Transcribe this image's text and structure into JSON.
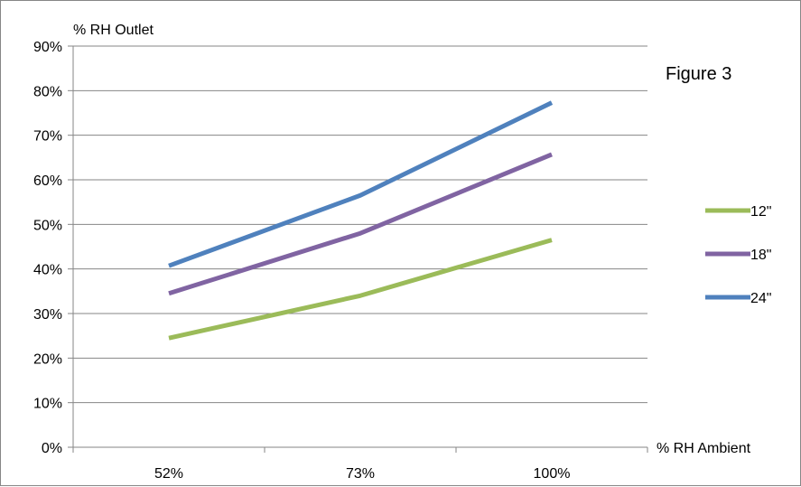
{
  "chart_data": {
    "type": "line",
    "title": "Figure 3",
    "xlabel": "% RH Ambient",
    "ylabel": "% RH Outlet",
    "categories": [
      "52%",
      "73%",
      "100%"
    ],
    "ylim": [
      0,
      90
    ],
    "yticks": [
      "0%",
      "10%",
      "20%",
      "30%",
      "40%",
      "50%",
      "60%",
      "70%",
      "80%",
      "90%"
    ],
    "grid": true,
    "legend_position": "right",
    "series": [
      {
        "name": "12\"",
        "values": [
          24.5,
          34,
          46.5
        ],
        "color": "#9BBB59"
      },
      {
        "name": "18\"",
        "values": [
          34.5,
          48,
          65.7
        ],
        "color": "#8064A2"
      },
      {
        "name": "24\"",
        "values": [
          40.7,
          56.5,
          77.3
        ],
        "color": "#4F81BD"
      }
    ]
  }
}
